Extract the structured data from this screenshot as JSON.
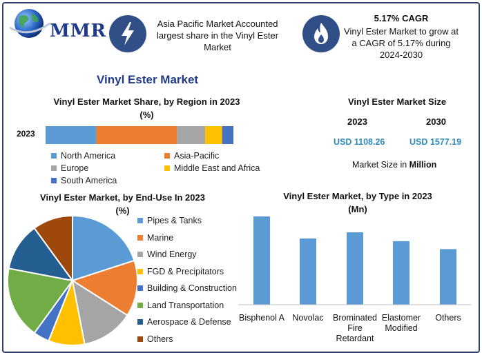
{
  "logo": {
    "text": "MMR"
  },
  "header": {
    "box1_icon": "lightning-icon",
    "box1_text": "Asia Pacific Market Accounted largest share in the Vinyl Ester Market",
    "box2_icon": "flame-icon",
    "box2_title": "5.17% CAGR",
    "box2_text": "Vinyl Ester Market to grow at a CAGR of 5.17% during 2024-2030"
  },
  "main_title": "Vinyl Ester Market",
  "market_size": {
    "title": "Vinyl Ester Market Size",
    "year1": "2023",
    "year2": "2030",
    "value1": "USD 1108.26",
    "value2": "USD 1577.19",
    "note_prefix": "Market Size in ",
    "note_unit": "Million"
  },
  "colors": {
    "blue": "#5b9bd5",
    "orange": "#ed7d31",
    "gray": "#a5a5a5",
    "yellow": "#ffc000",
    "darkblue": "#4472c4",
    "green": "#70ad47",
    "navy": "#255e91",
    "brown": "#9e480e",
    "accent": "#1f3a8a"
  },
  "chart_data": [
    {
      "type": "bar",
      "orientation": "horizontal-stacked",
      "title": "Vinyl Ester Market Share, by Region in 2023",
      "subtitle": "(%)",
      "categories": [
        "2023"
      ],
      "series": [
        {
          "name": "North America",
          "values": [
            27
          ],
          "color": "#5b9bd5"
        },
        {
          "name": "Asia-Pacific",
          "values": [
            43
          ],
          "color": "#ed7d31"
        },
        {
          "name": "Europe",
          "values": [
            15
          ],
          "color": "#a5a5a5"
        },
        {
          "name": "Middle East and Africa",
          "values": [
            9
          ],
          "color": "#ffc000"
        },
        {
          "name": "South America",
          "values": [
            6
          ],
          "color": "#4472c4"
        }
      ],
      "xlim": [
        0,
        100
      ],
      "legend": "bottom"
    },
    {
      "type": "pie",
      "title": "Vinyl Ester Market, by End-Use In 2023",
      "subtitle": "(%)",
      "slices": [
        {
          "label": "Pipes & Tanks",
          "value": 20,
          "color": "#5b9bd5"
        },
        {
          "label": "Marine",
          "value": 14,
          "color": "#ed7d31"
        },
        {
          "label": "Wind Energy",
          "value": 13,
          "color": "#a5a5a5"
        },
        {
          "label": "FGD & Precipitators",
          "value": 9,
          "color": "#ffc000"
        },
        {
          "label": "Building & Construction",
          "value": 4,
          "color": "#4472c4"
        },
        {
          "label": "Land Transportation",
          "value": 18,
          "color": "#70ad47"
        },
        {
          "label": "Aerospace & Defense",
          "value": 12,
          "color": "#255e91"
        },
        {
          "label": "Others",
          "value": 10,
          "color": "#9e480e"
        }
      ],
      "legend": "right"
    },
    {
      "type": "bar",
      "title": "Vinyl Ester Market, by Type in 2023",
      "subtitle": "(Mn)",
      "categories": [
        "Bisphenol A",
        "Novolac",
        "Brominated Fire Retardant",
        "Elastomer Modified",
        "Others"
      ],
      "values": [
        100,
        75,
        82,
        72,
        63
      ],
      "ylim": [
        0,
        100
      ],
      "color": "#5b9bd5",
      "grid": false
    }
  ]
}
